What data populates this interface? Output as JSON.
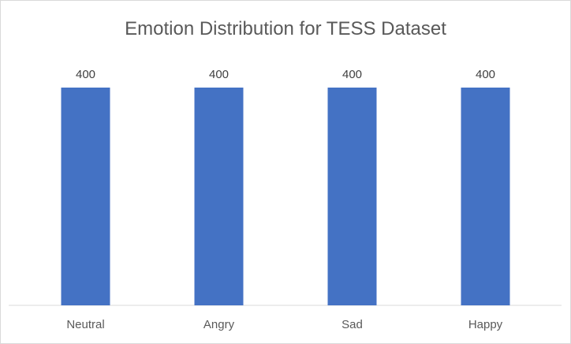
{
  "chart_data": {
    "type": "bar",
    "title": "Emotion Distribution for TESS Dataset",
    "categories": [
      "Neutral",
      "Angry",
      "Sad",
      "Happy"
    ],
    "values": [
      400,
      400,
      400,
      400
    ],
    "data_labels": [
      "400",
      "400",
      "400",
      "400"
    ],
    "xlabel": "",
    "ylabel": "",
    "ylim": [
      0,
      400
    ],
    "grid": false,
    "legend": "none",
    "colors": {
      "bar": "#4472c4",
      "axis": "#d9d9d9",
      "title": "#595959",
      "label": "#404040",
      "tick": "#595959"
    }
  }
}
